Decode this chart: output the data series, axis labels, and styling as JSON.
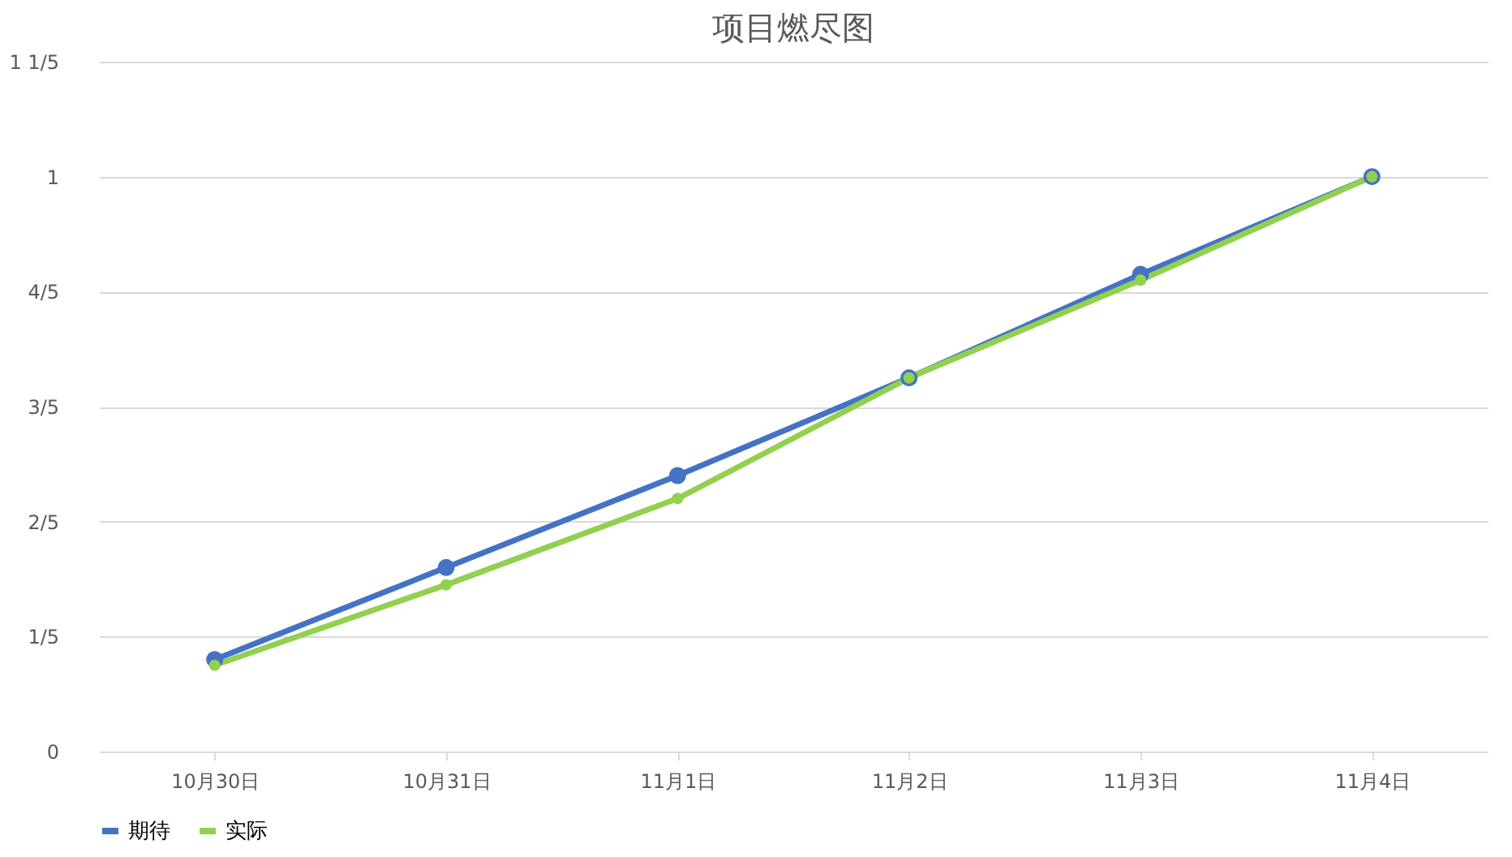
{
  "chart_data": {
    "type": "line",
    "title": "项目燃尽图",
    "categories": [
      "10月30日",
      "10月31日",
      "11月1日",
      "11月2日",
      "11月3日",
      "11月4日"
    ],
    "series": [
      {
        "name": "期待",
        "color": "#4472c4",
        "values": [
          0.16,
          0.32,
          0.48,
          0.65,
          0.83,
          1.0
        ]
      },
      {
        "name": "实际",
        "color": "#92d050",
        "values": [
          0.15,
          0.29,
          0.44,
          0.65,
          0.82,
          1.0
        ]
      }
    ],
    "ylim": [
      0,
      1.2
    ],
    "yticks": [
      0,
      {
        "value": 0.2,
        "label": "1/5"
      },
      {
        "value": 0.4,
        "label": "2/5"
      },
      {
        "value": 0.6,
        "label": "3/5"
      },
      {
        "value": 0.8,
        "label": "4/5"
      },
      1,
      {
        "value": 1.2,
        "label": "1 1/5"
      }
    ],
    "grid": "y",
    "legend": "bottom",
    "marker": "circle",
    "line_style": "solid"
  }
}
